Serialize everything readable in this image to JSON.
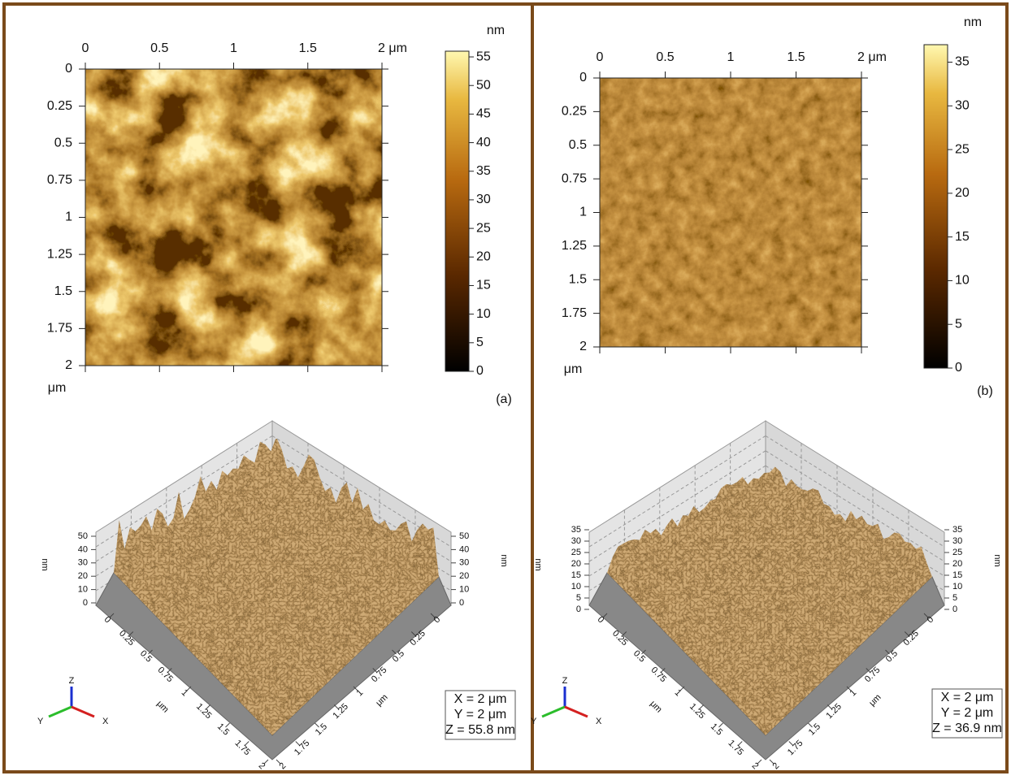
{
  "panels": [
    {
      "label": "(a)",
      "map": {
        "xlim": [
          0,
          2
        ],
        "xticks": [
          0,
          0.5,
          1,
          1.5,
          {
            "value": 2,
            "label": "2 μm"
          }
        ],
        "ylim": [
          0,
          2
        ],
        "yticks": [
          0,
          0.25,
          0.5,
          0.75,
          1,
          1.25,
          1.5,
          1.75,
          2
        ],
        "y_unit": "μm",
        "colorbar": {
          "unit": "nm",
          "lim": [
            0,
            56
          ],
          "ticks": [
            0,
            5,
            10,
            15,
            20,
            25,
            30,
            35,
            40,
            45,
            50,
            55
          ]
        }
      },
      "view3d": {
        "zticks": [
          0,
          10,
          20,
          30,
          40,
          50
        ],
        "z_unit": "nm",
        "xticks": [
          0,
          0.25,
          0.5,
          0.75,
          1,
          1.25,
          1.5,
          1.75,
          2
        ],
        "x_unit": "μm",
        "yticks": [
          0,
          0.25,
          0.5,
          0.75,
          1,
          1.25,
          1.5,
          1.75,
          2
        ],
        "y_unit": "μm",
        "axes": [
          "X",
          "Y",
          "Z"
        ],
        "info": [
          "X = 2 μm",
          "Y = 2 μm",
          "Z = 55.8 nm"
        ]
      }
    },
    {
      "label": "(b)",
      "map": {
        "xlim": [
          0,
          2
        ],
        "xticks": [
          0,
          0.5,
          1,
          1.5,
          {
            "value": 2,
            "label": "2 μm"
          }
        ],
        "ylim": [
          0,
          2
        ],
        "yticks": [
          0,
          0.25,
          0.5,
          0.75,
          1,
          1.25,
          1.5,
          1.75,
          2
        ],
        "y_unit": "μm",
        "colorbar": {
          "unit": "nm",
          "lim": [
            0,
            37
          ],
          "ticks": [
            0,
            5,
            10,
            15,
            20,
            25,
            30,
            35
          ]
        }
      },
      "view3d": {
        "zticks": [
          0,
          5,
          10,
          15,
          20,
          25,
          30,
          35
        ],
        "z_unit": "nm",
        "xticks": [
          0,
          0.25,
          0.5,
          0.75,
          1,
          1.25,
          1.5,
          1.75,
          2
        ],
        "x_unit": "μm",
        "yticks": [
          0,
          0.25,
          0.5,
          0.75,
          1,
          1.25,
          1.5,
          1.75,
          2
        ],
        "y_unit": "μm",
        "axes": [
          "X",
          "Y",
          "Z"
        ],
        "info": [
          "X = 2 μm",
          "Y = 2 μm",
          "Z = 36.9 nm"
        ]
      }
    }
  ]
}
